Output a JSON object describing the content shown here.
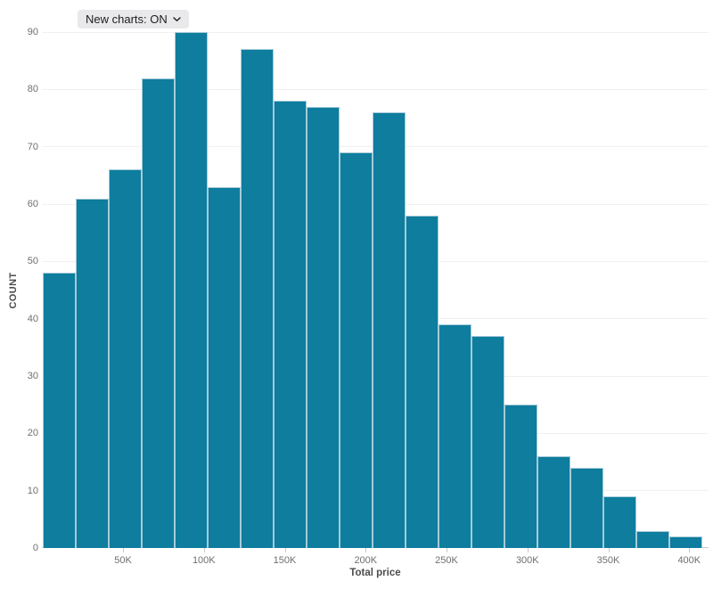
{
  "controls": {
    "new_charts_label": "New charts: ON",
    "chevron_icon": "chevron-down"
  },
  "colors": {
    "background": "#ffffff",
    "bar_fill": "#0e7d9e",
    "bar_stroke": "#a6cbd9",
    "gridline": "#f0f0f0",
    "axis_line": "#c9c9c9",
    "tick_label": "#6f6f6f",
    "axis_title": "#4d4d4d",
    "pill_bg": "#e9e9eb",
    "pill_text": "#1d1d1f"
  },
  "chart_data": {
    "type": "bar",
    "subtype": "histogram",
    "title": "",
    "xlabel": "Total price",
    "ylabel": "COUNT",
    "grid": true,
    "legend": "none",
    "ylim": [
      0,
      90
    ],
    "xlim_k": [
      0,
      410
    ],
    "bin_width_k": 20,
    "categories": [
      "0–20K",
      "20–40K",
      "40–60K",
      "60–80K",
      "80–100K",
      "100–120K",
      "120–140K",
      "140–160K",
      "160–180K",
      "180–200K",
      "200–220K",
      "220–240K",
      "240–260K",
      "260–280K",
      "280–300K",
      "300–320K",
      "320–340K",
      "340–360K",
      "360–380K",
      "380–400K"
    ],
    "values": [
      48,
      61,
      66,
      82,
      90,
      63,
      87,
      78,
      77,
      69,
      76,
      58,
      39,
      37,
      25,
      16,
      14,
      9,
      3,
      2
    ],
    "y_ticks": [
      0,
      10,
      20,
      30,
      40,
      50,
      60,
      70,
      80,
      90
    ],
    "x_ticks": [
      {
        "value_k": 50,
        "label": "50K"
      },
      {
        "value_k": 100,
        "label": "100K"
      },
      {
        "value_k": 150,
        "label": "150K"
      },
      {
        "value_k": 200,
        "label": "200K"
      },
      {
        "value_k": 250,
        "label": "250K"
      },
      {
        "value_k": 300,
        "label": "300K"
      },
      {
        "value_k": 350,
        "label": "350K"
      },
      {
        "value_k": 400,
        "label": "400K"
      }
    ]
  }
}
